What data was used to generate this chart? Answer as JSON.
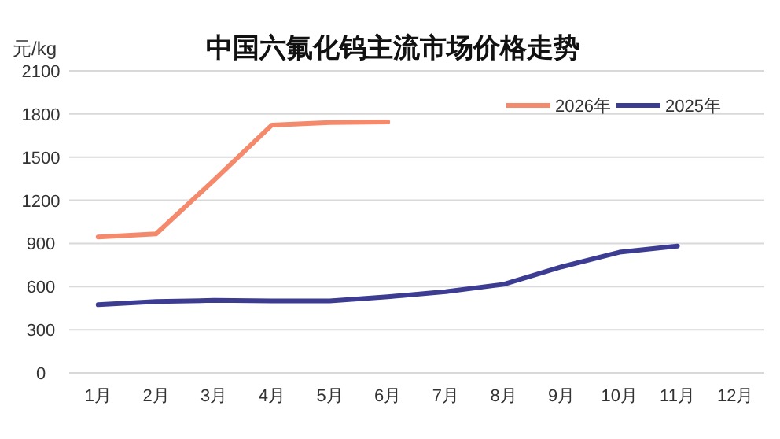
{
  "chart_data": {
    "type": "line",
    "title": "中国六氟化钨主流市场价格走势",
    "ylabel": "元/kg",
    "categories": [
      "1月",
      "2月",
      "3月",
      "4月",
      "5月",
      "6月",
      "7月",
      "8月",
      "9月",
      "10月",
      "11月",
      "12月"
    ],
    "series": [
      {
        "name": "2026年",
        "color": "#f4896b",
        "values": [
          945,
          967,
          1340,
          1723,
          1741,
          1745,
          null,
          null,
          null,
          null,
          null,
          null
        ]
      },
      {
        "name": "2025年",
        "color": "#3b3c92",
        "values": [
          474,
          496,
          504,
          500,
          500,
          529,
          565,
          616,
          737,
          839,
          882,
          null
        ]
      }
    ],
    "ylim": [
      0,
      2100
    ],
    "yticks": [
      0,
      300,
      600,
      900,
      1200,
      1500,
      1800,
      2100
    ],
    "grid": "y",
    "legend": "top right",
    "marker": "none",
    "line_style": "solid"
  }
}
